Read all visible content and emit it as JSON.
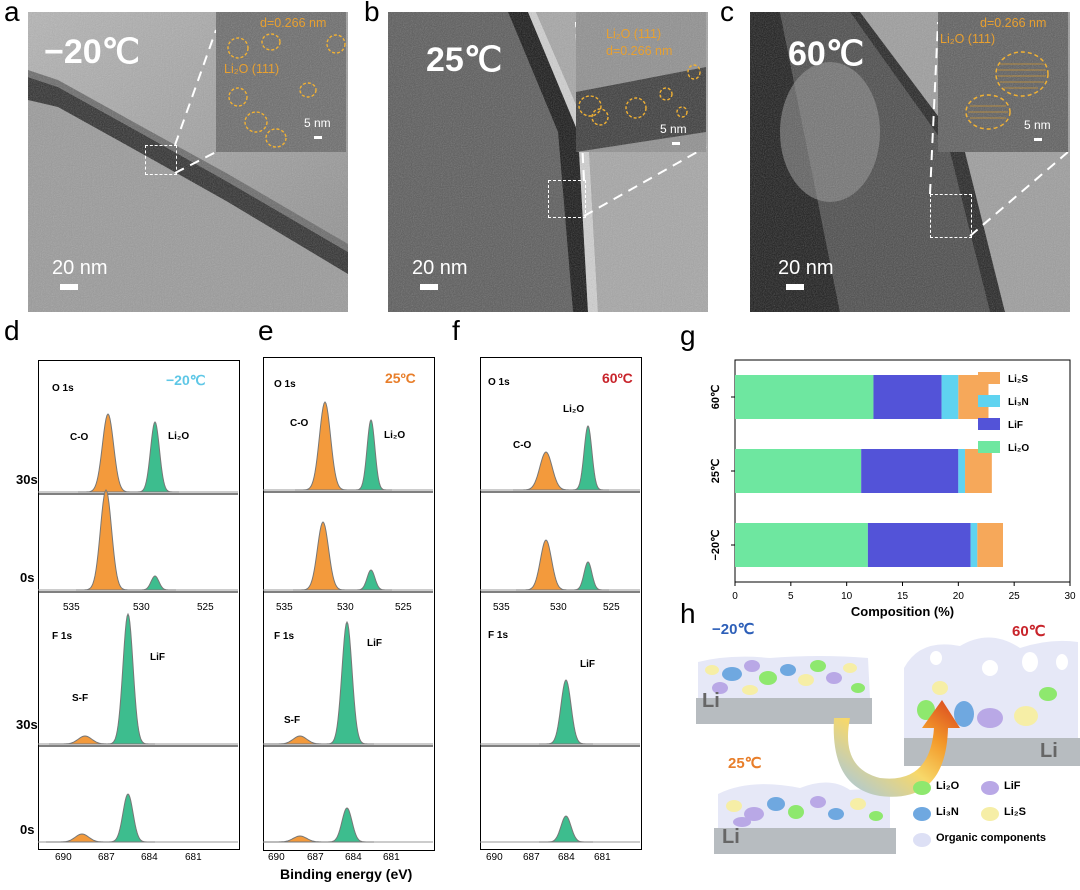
{
  "panels": {
    "a": {
      "letter": "a",
      "temp": "−20℃",
      "scale": "20 nm",
      "d_label": "d=0.266 nm",
      "plane": "Li₂O (111)",
      "inset_scale": "5 nm"
    },
    "b": {
      "letter": "b",
      "temp": "25℃",
      "scale": "20 nm",
      "d_label": "d=0.266 nm",
      "plane": "Li₂O (111)",
      "inset_scale": "5 nm"
    },
    "c": {
      "letter": "c",
      "temp": "60℃",
      "scale": "20 nm",
      "d_label": "d=0.266 nm",
      "plane": "Li₂O (111)",
      "inset_scale": "5 nm"
    }
  },
  "xps": {
    "d": {
      "letter": "d",
      "temp": "−20℃",
      "temp_color": "#5ec7e6",
      "o1s": "O 1s",
      "f1s": "F 1s",
      "co": "C-O",
      "li2o": "Li₂O",
      "lif": "LiF",
      "sf": "S-F"
    },
    "e": {
      "letter": "e",
      "temp": "25ºC",
      "temp_color": "#e87e2a",
      "o1s": "O 1s",
      "f1s": "F 1s",
      "co": "C-O",
      "li2o": "Li₂O",
      "lif": "LiF",
      "sf": "S-F"
    },
    "f": {
      "letter": "f",
      "temp": "60ºC",
      "temp_color": "#c8242b",
      "o1s": "O 1s",
      "f1s": "F 1s",
      "co": "C-O",
      "li2o": "Li₂O",
      "lif": "LiF"
    },
    "row_labels": {
      "t30": "30s",
      "t0": "0s"
    },
    "o_ticks": [
      "535",
      "530",
      "525"
    ],
    "f_ticks": [
      "690",
      "687",
      "684",
      "681"
    ],
    "xlabel": "Binding energy (eV)",
    "colors": {
      "orange": "#f39a3c",
      "green": "#3dbd8e"
    }
  },
  "chart_data": {
    "type": "bar",
    "orientation": "horizontal",
    "stacked": true,
    "panel": "g",
    "categories": [
      "60℃",
      "25℃",
      "−20℃"
    ],
    "series": [
      {
        "name": "Li₂O",
        "color": "#6ee7a0",
        "values": [
          12.4,
          11.3,
          11.9
        ]
      },
      {
        "name": "LiF",
        "color": "#5353d8",
        "values": [
          6.1,
          8.7,
          9.2
        ]
      },
      {
        "name": "Li₃N",
        "color": "#5fd3f0",
        "values": [
          1.5,
          0.6,
          0.6
        ]
      },
      {
        "name": "Li₂S",
        "color": "#f6a85a",
        "values": [
          2.7,
          2.4,
          2.3
        ]
      }
    ],
    "xlabel": "Composition (%)",
    "xlim": [
      0,
      30
    ],
    "xticks": [
      "0",
      "5",
      "10",
      "15",
      "20",
      "25",
      "30"
    ],
    "legend_position": "top-right"
  },
  "schematic": {
    "letter": "h",
    "t_low": "−20℃",
    "t_low_color": "#2d5fb8",
    "t_high": "60℃",
    "t_high_color": "#c8242b",
    "t_mid": "25℃",
    "t_mid_color": "#e87e2a",
    "li": "Li",
    "legend": [
      {
        "label": "Li₂O",
        "color": "#8ee86e"
      },
      {
        "label": "LiF",
        "color": "#b9a8e6"
      },
      {
        "label": "Li₃N",
        "color": "#6fa8e0"
      },
      {
        "label": "Li₂S",
        "color": "#f6eea6"
      },
      {
        "label": "Organic components",
        "color": "#dde0f5"
      }
    ]
  }
}
